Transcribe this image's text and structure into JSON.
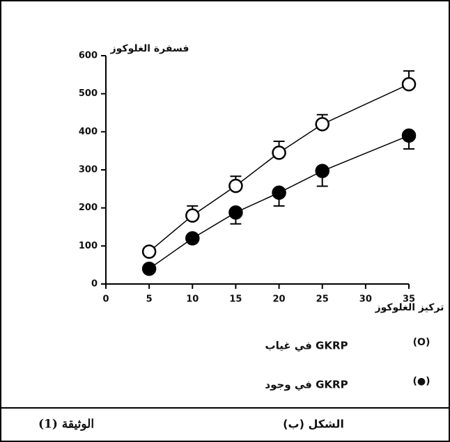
{
  "chart_data": {
    "type": "line",
    "ylabel": "فسفرة الغلوكوز",
    "xlabel": "تركيز الغلوكوز",
    "xlim": [
      0,
      35
    ],
    "xticks": [
      0,
      5,
      10,
      15,
      20,
      25,
      30,
      35
    ],
    "ylim": [
      0,
      600
    ],
    "yticks": [
      0,
      100,
      200,
      300,
      400,
      500,
      600
    ],
    "grid": false,
    "series": [
      {
        "name": "في غياب GKRP",
        "symbol": "(O)",
        "color": "#000000",
        "marker": "open",
        "error_direction": "up",
        "x": [
          5,
          10,
          15,
          20,
          25,
          35
        ],
        "values": [
          85,
          180,
          258,
          345,
          420,
          525
        ],
        "errors": [
          8,
          25,
          25,
          30,
          25,
          35
        ]
      },
      {
        "name": "في وجود GKRP",
        "symbol": "(●)",
        "color": "#000000",
        "marker": "filled",
        "error_direction": "down",
        "x": [
          5,
          10,
          15,
          20,
          25,
          35
        ],
        "values": [
          40,
          120,
          188,
          240,
          297,
          390
        ],
        "errors": [
          5,
          10,
          30,
          35,
          40,
          35
        ]
      }
    ]
  },
  "footer": {
    "document_label": "الوثيقة (1)",
    "figure_label": "الشكل (ب)"
  }
}
